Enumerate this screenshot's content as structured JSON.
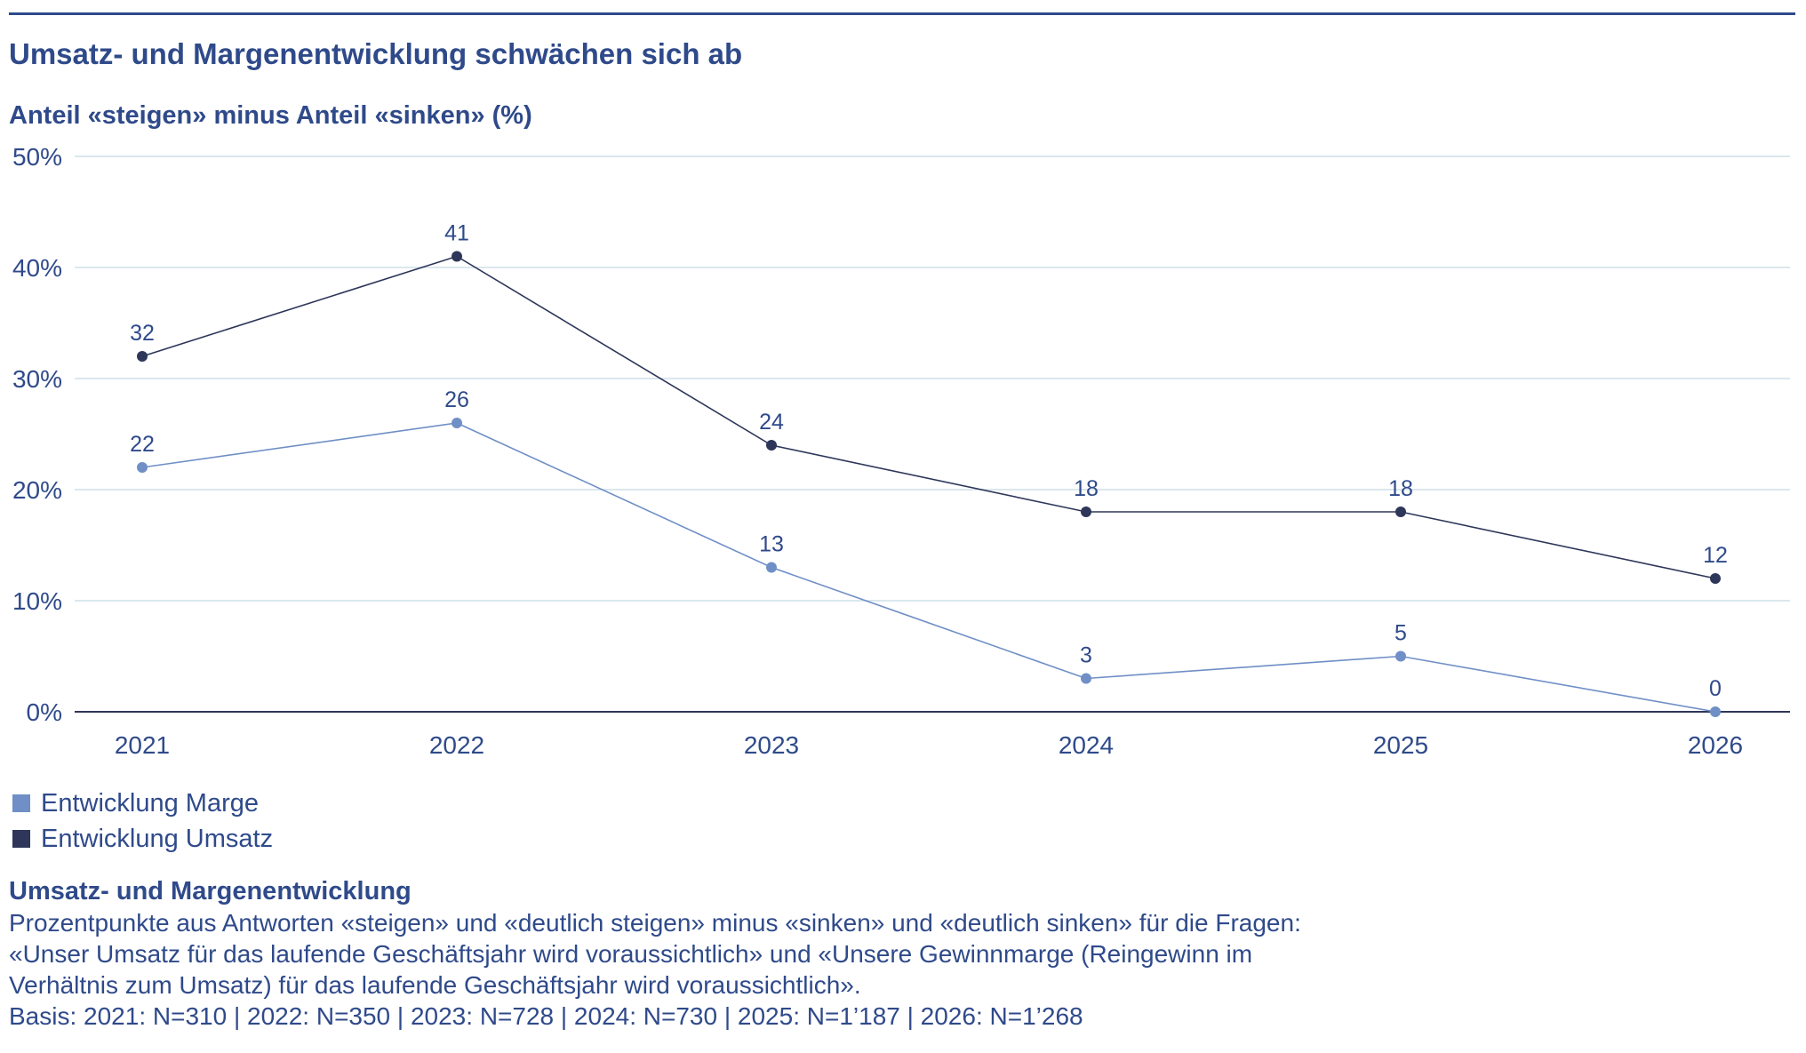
{
  "title": "Umsatz- und Margenentwicklung schwächen sich ab",
  "subtitle": "Anteil «steigen» minus Anteil «sinken» (%)",
  "colors": {
    "text": "#2f4a8a",
    "marge": "#6f8fc6",
    "umsatz": "#2e3659",
    "grid": "#cfdfe8",
    "baseline": "#2e3659"
  },
  "chart_data": {
    "type": "line",
    "x": [
      "2021",
      "2022",
      "2023",
      "2024",
      "2025",
      "2026"
    ],
    "ylim": [
      0,
      50
    ],
    "yticks": [
      "0%",
      "10%",
      "20%",
      "30%",
      "40%",
      "50%"
    ],
    "grid": true,
    "legend_position": "bottom-left",
    "series": [
      {
        "name": "Entwicklung Marge",
        "color": "#6f8fc6",
        "values": [
          22,
          26,
          13,
          3,
          5,
          0
        ]
      },
      {
        "name": "Entwicklung Umsatz",
        "color": "#2e3659",
        "values": [
          32,
          41,
          24,
          18,
          18,
          12
        ]
      }
    ]
  },
  "legend": [
    {
      "label": "Entwicklung Marge",
      "color": "#6f8fc6"
    },
    {
      "label": "Entwicklung Umsatz",
      "color": "#2e3659"
    }
  ],
  "note": {
    "title": "Umsatz- und Margenentwicklung",
    "body": "Prozentpunkte aus Antworten «steigen» und «deutlich steigen» minus «sinken» und «deutlich sinken» für die Fragen:\n«Unser Umsatz für das laufende Geschäftsjahr wird voraussichtlich» und «Unsere Gewinnmarge (Reingewinn im\nVerhältnis zum Umsatz) für das laufende Geschäftsjahr wird voraussichtlich».\nBasis: 2021: N=310 | 2022: N=350 | 2023: N=728 | 2024: N=730 | 2025: N=1’187 | 2026: N=1’268"
  }
}
